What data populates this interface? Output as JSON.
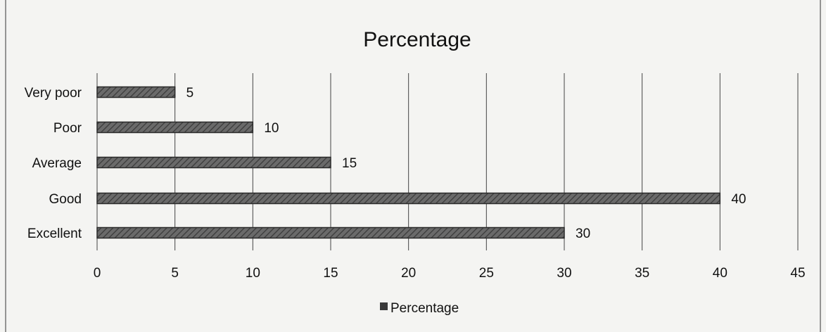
{
  "chart_data": {
    "type": "bar",
    "orientation": "horizontal",
    "title": "Percentage",
    "categories": [
      "Very poor",
      "Poor",
      "Average",
      "Good",
      "Excellent"
    ],
    "series": [
      {
        "name": "Percentage",
        "values": [
          5,
          10,
          15,
          40,
          30
        ]
      }
    ],
    "xlim": [
      0,
      45
    ],
    "x_ticks": [
      0,
      5,
      10,
      15,
      20,
      25,
      30,
      35,
      40,
      45
    ],
    "grid": true,
    "legend": "bottom",
    "colors": {
      "bar": "#5a5a5a",
      "grid": "#444444",
      "text": "#111111"
    }
  }
}
